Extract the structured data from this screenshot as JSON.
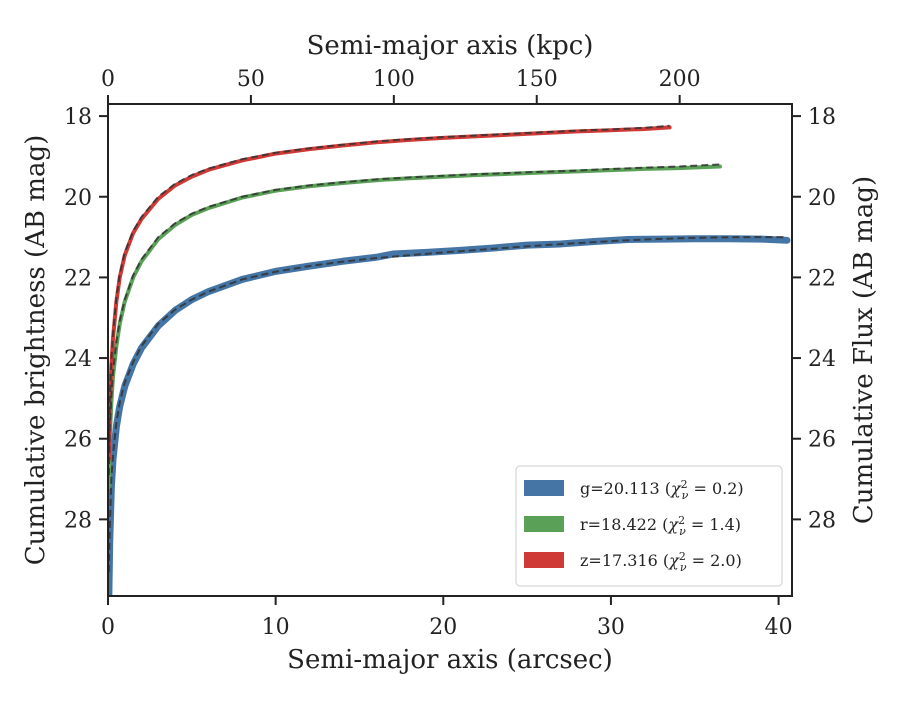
{
  "chart_data": {
    "type": "line",
    "xlabel": "Semi-major axis (arcsec)",
    "ylabel": "Cumulative brightness (AB mag)",
    "x2label": "Semi-major axis (kpc)",
    "y2label": "Cumulative Flux (AB mag)",
    "xlim": [
      0,
      40.8
    ],
    "ylim": [
      29.9,
      17.7
    ],
    "x2lim": [
      0,
      239.3
    ],
    "y_inverted": true,
    "x_ticks": [
      0,
      10,
      20,
      30,
      40
    ],
    "x_tick_labels": [
      "0",
      "10",
      "20",
      "30",
      "40"
    ],
    "y_ticks": [
      18,
      20,
      22,
      24,
      26,
      28
    ],
    "y_tick_labels": [
      "18",
      "20",
      "22",
      "24",
      "26",
      "28"
    ],
    "x2_ticks": [
      0,
      50,
      100,
      150,
      200
    ],
    "x2_tick_labels": [
      "0",
      "50",
      "100",
      "150",
      "200"
    ],
    "grid": false,
    "legend_position": "lower-right",
    "series": [
      {
        "name": "g=20.113 (χ²ᵥ = 0.2)",
        "legend": {
          "prefix": "g=20.113 (",
          "chi": "χ",
          "sup": "2",
          "sub": "ν",
          "suffix": " = 0.2)"
        },
        "color": "#4575a5",
        "x": [
          0.05,
          0.1,
          0.2,
          0.3,
          0.5,
          0.7,
          1,
          1.5,
          2,
          3,
          4,
          5,
          6,
          8,
          10,
          12,
          14,
          16,
          17,
          19,
          21,
          23,
          25,
          27,
          29,
          31,
          33,
          35,
          37,
          39,
          40.5
        ],
        "y": [
          29.9,
          28.6,
          27.2,
          26.5,
          25.7,
          25.2,
          24.7,
          24.15,
          23.75,
          23.2,
          22.82,
          22.55,
          22.35,
          22.05,
          21.85,
          21.72,
          21.6,
          21.5,
          21.42,
          21.38,
          21.33,
          21.27,
          21.2,
          21.17,
          21.11,
          21.06,
          21.05,
          21.04,
          21.04,
          21.05,
          21.08
        ]
      },
      {
        "name": "r=18.422 (χ²ᵥ = 1.4)",
        "legend": {
          "prefix": "r=18.422 (",
          "chi": "χ",
          "sup": "2",
          "sub": "ν",
          "suffix": " = 1.4)"
        },
        "color": "#5aa157",
        "x": [
          0.05,
          0.1,
          0.2,
          0.3,
          0.5,
          0.7,
          1,
          1.5,
          2,
          3,
          4,
          5,
          6,
          8,
          10,
          12,
          14,
          16,
          18,
          20,
          22,
          24,
          26,
          28,
          30,
          32,
          34,
          36.5
        ],
        "y": [
          27.2,
          26.0,
          25.1,
          24.45,
          23.7,
          23.15,
          22.6,
          22.0,
          21.6,
          21.05,
          20.7,
          20.45,
          20.28,
          20.02,
          19.85,
          19.74,
          19.66,
          19.59,
          19.54,
          19.5,
          19.46,
          19.43,
          19.4,
          19.37,
          19.34,
          19.31,
          19.29,
          19.25
        ]
      },
      {
        "name": "z=17.316 (χ²ᵥ = 2.0)",
        "legend": {
          "prefix": "z=17.316 (",
          "chi": "χ",
          "sup": "2",
          "sub": "ν",
          "suffix": " = 2.0)"
        },
        "color": "#d03a36",
        "x": [
          0.05,
          0.1,
          0.2,
          0.3,
          0.5,
          0.7,
          1,
          1.5,
          2,
          3,
          4,
          5,
          6,
          8,
          10,
          12,
          14,
          16,
          18,
          20,
          22,
          24,
          26,
          28,
          30,
          32,
          33.5
        ],
        "y": [
          26.5,
          25.3,
          24.2,
          23.5,
          22.6,
          22.0,
          21.45,
          20.9,
          20.55,
          20.05,
          19.72,
          19.5,
          19.33,
          19.1,
          18.93,
          18.82,
          18.73,
          18.65,
          18.59,
          18.54,
          18.5,
          18.46,
          18.42,
          18.38,
          18.35,
          18.32,
          18.28
        ]
      }
    ],
    "model_fits": [
      {
        "series": "g",
        "color": "#333333",
        "x": [
          0.05,
          0.1,
          0.2,
          0.3,
          0.5,
          0.7,
          1,
          1.5,
          2,
          3,
          4,
          5,
          6,
          8,
          10,
          12,
          14,
          16,
          18,
          20,
          22,
          24,
          26,
          28,
          30,
          32,
          34,
          36,
          38,
          40.5
        ],
        "y": [
          29.3,
          28.3,
          27.0,
          26.4,
          25.6,
          25.1,
          24.6,
          24.1,
          23.7,
          23.15,
          22.8,
          22.55,
          22.35,
          22.05,
          21.86,
          21.72,
          21.61,
          21.52,
          21.45,
          21.38,
          21.32,
          21.26,
          21.2,
          21.15,
          21.1,
          21.06,
          21.03,
          21.01,
          21.0,
          21.0
        ]
      },
      {
        "series": "r",
        "color": "#333333",
        "x": [
          0.05,
          0.1,
          0.2,
          0.3,
          0.5,
          0.7,
          1,
          1.5,
          2,
          3,
          4,
          5,
          6,
          8,
          10,
          12,
          14,
          16,
          18,
          20,
          22,
          24,
          26,
          28,
          30,
          32,
          34,
          36.5
        ],
        "y": [
          26.9,
          25.8,
          24.95,
          24.35,
          23.6,
          23.08,
          22.55,
          21.95,
          21.55,
          21.0,
          20.66,
          20.42,
          20.25,
          20.0,
          19.83,
          19.72,
          19.64,
          19.57,
          19.52,
          19.48,
          19.44,
          19.41,
          19.38,
          19.35,
          19.31,
          19.28,
          19.25,
          19.2
        ]
      },
      {
        "series": "z",
        "color": "#333333",
        "x": [
          0.05,
          0.1,
          0.2,
          0.3,
          0.5,
          0.7,
          1,
          1.5,
          2,
          3,
          4,
          5,
          6,
          8,
          10,
          12,
          14,
          16,
          18,
          20,
          22,
          24,
          26,
          28,
          30,
          32,
          33.5
        ],
        "y": [
          26.2,
          25.1,
          24.05,
          23.4,
          22.5,
          21.92,
          21.38,
          20.85,
          20.5,
          20.0,
          19.68,
          19.46,
          19.3,
          19.07,
          18.91,
          18.8,
          18.71,
          18.63,
          18.57,
          18.52,
          18.48,
          18.44,
          18.4,
          18.36,
          18.33,
          18.29,
          18.24
        ]
      }
    ]
  }
}
